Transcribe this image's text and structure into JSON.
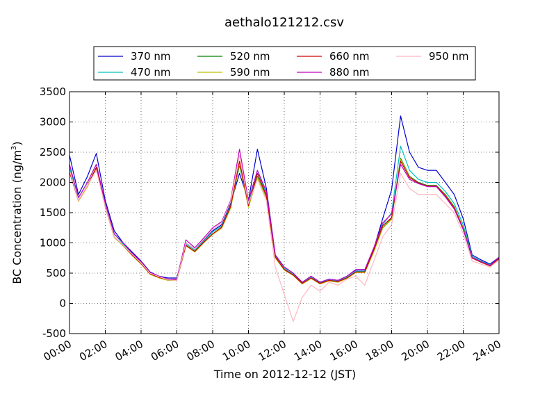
{
  "chart_data": {
    "type": "line",
    "title": "aethalo121212.csv",
    "xlabel": "Time on 2012-12-12 (JST)",
    "ylabel_main": "BC Concentration (ng/m",
    "ylabel_sup": "3",
    "ylabel_close": ")",
    "xlim": [
      "00:00",
      "24:00"
    ],
    "ylim": [
      -500,
      3500
    ],
    "xticks": [
      "00:00",
      "02:00",
      "04:00",
      "06:00",
      "08:00",
      "10:00",
      "12:00",
      "14:00",
      "16:00",
      "18:00",
      "20:00",
      "22:00",
      "24:00"
    ],
    "yticks": [
      "-500",
      "0",
      "500",
      "1000",
      "1500",
      "2000",
      "2500",
      "3000",
      "3500"
    ],
    "grid": true,
    "legend_position": "top, above plot, 4 columns",
    "x": [
      "00:00",
      "00:30",
      "01:00",
      "01:30",
      "02:00",
      "02:30",
      "03:00",
      "03:30",
      "04:00",
      "04:30",
      "05:00",
      "05:30",
      "06:00",
      "06:30",
      "07:00",
      "07:30",
      "08:00",
      "08:30",
      "09:00",
      "09:30",
      "10:00",
      "10:30",
      "11:00",
      "11:30",
      "12:00",
      "12:30",
      "13:00",
      "13:30",
      "14:00",
      "14:30",
      "15:00",
      "15:30",
      "16:00",
      "16:30",
      "17:00",
      "17:30",
      "18:00",
      "18:30",
      "19:00",
      "19:30",
      "20:00",
      "20:30",
      "21:00",
      "21:30",
      "22:00",
      "22:30",
      "23:00",
      "23:30",
      "24:00"
    ],
    "series": [
      {
        "name": "370 nm",
        "color": "#0000cc",
        "values": [
          2450,
          1800,
          2100,
          2480,
          1700,
          1200,
          1000,
          850,
          700,
          520,
          450,
          420,
          420,
          1000,
          900,
          1050,
          1200,
          1300,
          1650,
          2150,
          1700,
          2550,
          1900,
          800,
          600,
          500,
          350,
          450,
          350,
          400,
          380,
          450,
          550,
          550,
          900,
          1400,
          1880,
          3100,
          2500,
          2250,
          2200,
          2200,
          2000,
          1800,
          1400,
          800,
          720,
          650,
          760
        ]
      },
      {
        "name": "470 nm",
        "color": "#00bfbf",
        "values": [
          2250,
          1750,
          2000,
          2300,
          1650,
          1150,
          980,
          820,
          680,
          500,
          440,
          400,
          400,
          980,
          880,
          1030,
          1180,
          1280,
          1620,
          2280,
          1650,
          2200,
          1800,
          780,
          580,
          480,
          340,
          430,
          340,
          390,
          370,
          430,
          530,
          530,
          880,
          1300,
          1500,
          2600,
          2200,
          2050,
          2000,
          2000,
          1850,
          1650,
          1300,
          780,
          700,
          640,
          750
        ]
      },
      {
        "name": "520 nm",
        "color": "#007f00",
        "values": [
          2200,
          1700,
          1950,
          2250,
          1600,
          1100,
          960,
          800,
          660,
          490,
          430,
          390,
          390,
          960,
          860,
          1010,
          1150,
          1250,
          1580,
          2300,
          1600,
          2100,
          1750,
          760,
          560,
          470,
          330,
          420,
          330,
          380,
          360,
          420,
          520,
          520,
          860,
          1250,
          1400,
          2400,
          2100,
          2000,
          1950,
          1950,
          1800,
          1600,
          1250,
          760,
          690,
          630,
          740
        ]
      },
      {
        "name": "590 nm",
        "color": "#bfbf00",
        "values": [
          2180,
          1690,
          1930,
          2230,
          1590,
          1090,
          950,
          790,
          650,
          480,
          420,
          380,
          380,
          950,
          850,
          1000,
          1140,
          1240,
          1570,
          2320,
          1590,
          2080,
          1740,
          750,
          550,
          460,
          320,
          410,
          320,
          370,
          350,
          410,
          510,
          510,
          850,
          1240,
          1390,
          2380,
          2090,
          1990,
          1940,
          1940,
          1790,
          1590,
          1240,
          750,
          680,
          620,
          730
        ]
      },
      {
        "name": "660 nm",
        "color": "#cc0000",
        "values": [
          2170,
          1700,
          1950,
          2250,
          1600,
          1100,
          960,
          800,
          660,
          490,
          430,
          390,
          390,
          960,
          860,
          1010,
          1150,
          1260,
          1600,
          2350,
          1620,
          2150,
          1780,
          770,
          560,
          470,
          330,
          420,
          330,
          380,
          360,
          420,
          520,
          520,
          880,
          1280,
          1420,
          2350,
          2080,
          1990,
          1940,
          1940,
          1780,
          1580,
          1230,
          750,
          680,
          620,
          740
        ]
      },
      {
        "name": "880 nm",
        "color": "#bf00bf",
        "values": [
          2300,
          1750,
          2000,
          2300,
          1650,
          1150,
          1000,
          830,
          690,
          510,
          450,
          400,
          400,
          1050,
          920,
          1080,
          1250,
          1350,
          1700,
          2550,
          1700,
          2200,
          1850,
          800,
          600,
          500,
          350,
          450,
          350,
          400,
          380,
          450,
          560,
          560,
          920,
          1330,
          1480,
          2300,
          2050,
          1980,
          1930,
          1930,
          1760,
          1560,
          1220,
          760,
          690,
          630,
          760
        ]
      },
      {
        "name": "950 nm",
        "color": "#ffb6c1",
        "values": [
          2200,
          1700,
          1950,
          2200,
          1600,
          1100,
          960,
          810,
          670,
          500,
          440,
          390,
          380,
          1000,
          900,
          1060,
          1220,
          1330,
          1680,
          2450,
          1650,
          2050,
          1700,
          600,
          150,
          -300,
          100,
          300,
          200,
          350,
          300,
          400,
          450,
          300,
          700,
          1100,
          1300,
          2150,
          1900,
          1800,
          1800,
          1800,
          1650,
          1500,
          1150,
          700,
          650,
          600,
          720
        ]
      }
    ]
  }
}
